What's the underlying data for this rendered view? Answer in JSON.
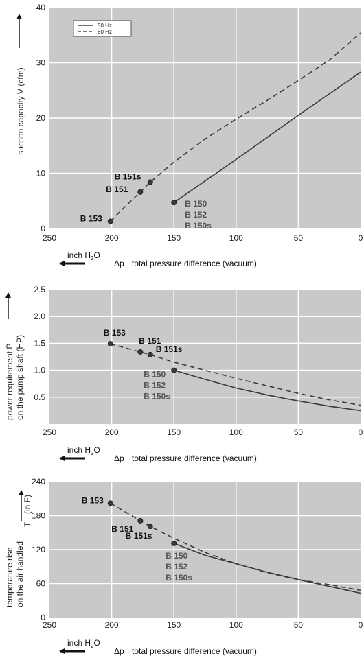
{
  "colors": {
    "plot_bg": "#c8c9cb",
    "grid": "#ffffff",
    "line": "#3a3a3a",
    "gray_label": "#555555"
  },
  "chart_data": [
    {
      "type": "line",
      "xlim": [
        250,
        0
      ],
      "ylim": [
        0,
        40
      ],
      "xticks": [
        "250",
        "200",
        "150",
        "100",
        "50",
        "0"
      ],
      "yticks": [
        "0",
        "10",
        "20",
        "30",
        "40"
      ],
      "ylabel": "suction capacity V (cfm)",
      "xlabel_unit": "inch H",
      "xlabel_unit_sub": "2",
      "xlabel_unit_end": "O",
      "xlabel_symbol": "Δp",
      "xlabel": "total pressure difference (vacuum)",
      "legend": {
        "position": "top-left",
        "entries": [
          "50 Hz",
          "60 Hz"
        ]
      },
      "series": [
        {
          "name": "50 Hz",
          "style": "solid",
          "points": [
            [
              150,
              4.7
            ],
            [
              100,
              12.5
            ],
            [
              50,
              20.5
            ],
            [
              0,
              28.3
            ]
          ]
        },
        {
          "name": "60 Hz",
          "style": "dashed",
          "points": [
            [
              201,
              1.3
            ],
            [
              190,
              3.8
            ],
            [
              177,
              6.6
            ],
            [
              169,
              8.4
            ],
            [
              150,
              12
            ],
            [
              125,
              16.2
            ],
            [
              100,
              19.8
            ],
            [
              75,
              23.2
            ],
            [
              50,
              26.8
            ],
            [
              25,
              30.5
            ],
            [
              0,
              35.4
            ]
          ]
        }
      ],
      "markers": [
        [
          201,
          1.3
        ],
        [
          177,
          6.6
        ],
        [
          169,
          8.4
        ],
        [
          150,
          4.7
        ]
      ],
      "annotations": [
        {
          "text": "B 151s",
          "x": 169,
          "y": 8.4,
          "style": "dark",
          "dx": -52,
          "dy": -4
        },
        {
          "text": "B 151",
          "x": 177,
          "y": 6.6,
          "style": "dark",
          "dx": -50,
          "dy": 0
        },
        {
          "text": "B 153",
          "x": 201,
          "y": 1.3,
          "style": "dark",
          "dx": -44,
          "dy": 0
        },
        {
          "text": "B 150",
          "x": 150,
          "y": 4.7,
          "style": "gray",
          "dx": 16,
          "dy": 6
        },
        {
          "text": "B 152",
          "x": 150,
          "y": 4.7,
          "style": "gray",
          "dx": 16,
          "dy": 22
        },
        {
          "text": "B 150s",
          "x": 150,
          "y": 4.7,
          "style": "gray",
          "dx": 16,
          "dy": 38
        }
      ]
    },
    {
      "type": "line",
      "xlim": [
        250,
        0
      ],
      "ylim": [
        0,
        2.5
      ],
      "xticks": [
        "250",
        "200",
        "150",
        "100",
        "50",
        "0"
      ],
      "yticks": [
        "0.5",
        "1.0",
        "1.5",
        "2.0",
        "2.5"
      ],
      "ytick_values": [
        0.5,
        1.0,
        1.5,
        2.0,
        2.5
      ],
      "ylabel_line1": "power requirement P",
      "ylabel_line2": "on the pump shaft (HP)",
      "xlabel_unit": "inch H",
      "xlabel_unit_sub": "2",
      "xlabel_unit_end": "O",
      "xlabel_symbol": "Δp",
      "xlabel": "total pressure difference (vacuum)",
      "series": [
        {
          "name": "",
          "style": "solid",
          "points": [
            [
              150,
              1.0
            ],
            [
              125,
              0.83
            ],
            [
              100,
              0.67
            ],
            [
              75,
              0.54
            ],
            [
              50,
              0.43
            ],
            [
              25,
              0.33
            ],
            [
              0,
              0.25
            ]
          ]
        },
        {
          "name": "",
          "style": "dashed",
          "points": [
            [
              201,
              1.49
            ],
            [
              177,
              1.34
            ],
            [
              169,
              1.29
            ],
            [
              150,
              1.15
            ],
            [
              125,
              1.0
            ],
            [
              100,
              0.85
            ],
            [
              75,
              0.71
            ],
            [
              50,
              0.57
            ],
            [
              25,
              0.45
            ],
            [
              0,
              0.35
            ]
          ]
        }
      ],
      "markers": [
        [
          201,
          1.49
        ],
        [
          177,
          1.34
        ],
        [
          169,
          1.29
        ],
        [
          150,
          1.0
        ]
      ],
      "annotations": [
        {
          "text": "B 153",
          "x": 201,
          "y": 1.49,
          "style": "dark",
          "dx": -10,
          "dy": -12
        },
        {
          "text": "B 151",
          "x": 177,
          "y": 1.34,
          "style": "dark",
          "dx": -2,
          "dy": -12
        },
        {
          "text": "B 151s",
          "x": 169,
          "y": 1.29,
          "style": "dark",
          "dx": 8,
          "dy": -4
        },
        {
          "text": "B 150",
          "x": 150,
          "y": 1.0,
          "style": "gray",
          "dx": -44,
          "dy": 10
        },
        {
          "text": "B 152",
          "x": 150,
          "y": 1.0,
          "style": "gray",
          "dx": -44,
          "dy": 26
        },
        {
          "text": "B 150s",
          "x": 150,
          "y": 1.0,
          "style": "gray",
          "dx": -44,
          "dy": 42
        }
      ]
    },
    {
      "type": "line",
      "xlim": [
        250,
        0
      ],
      "ylim": [
        0,
        240
      ],
      "xticks": [
        "250",
        "200",
        "150",
        "100",
        "50",
        "0"
      ],
      "yticks": [
        "0",
        "60",
        "120",
        "180",
        "240"
      ],
      "ylabel_line1": "temperature rise",
      "ylabel_line2": "on the air handled",
      "ylabel_symbol": "T",
      "ylabel_unit": "(in F)",
      "xlabel_unit": "inch H",
      "xlabel_unit_sub": "2",
      "xlabel_unit_end": "O",
      "xlabel_symbol": "Δp",
      "xlabel": "total pressure difference (vacuum)",
      "series": [
        {
          "name": "",
          "style": "solid",
          "points": [
            [
              150,
              131
            ],
            [
              125,
              110
            ],
            [
              100,
              95
            ],
            [
              75,
              80
            ],
            [
              50,
              67
            ],
            [
              25,
              55
            ],
            [
              0,
              43
            ]
          ]
        },
        {
          "name": "",
          "style": "dashed",
          "points": [
            [
              201,
              202
            ],
            [
              177,
              171
            ],
            [
              169,
              161
            ],
            [
              150,
              140
            ],
            [
              125,
              115
            ],
            [
              100,
              95
            ],
            [
              75,
              79
            ],
            [
              50,
              67
            ],
            [
              25,
              58
            ],
            [
              0,
              48
            ]
          ]
        }
      ],
      "markers": [
        [
          201,
          202
        ],
        [
          177,
          171
        ],
        [
          169,
          161
        ],
        [
          150,
          131
        ]
      ],
      "annotations": [
        {
          "text": "B 153",
          "x": 201,
          "y": 202,
          "style": "dark",
          "dx": -42,
          "dy": 0
        },
        {
          "text": "B 151",
          "x": 177,
          "y": 171,
          "style": "dark",
          "dx": -42,
          "dy": 16
        },
        {
          "text": "B 151s",
          "x": 169,
          "y": 161,
          "style": "dark",
          "dx": -36,
          "dy": 18
        },
        {
          "text": "B 150",
          "x": 150,
          "y": 131,
          "style": "gray",
          "dx": -12,
          "dy": 22
        },
        {
          "text": "B 152",
          "x": 150,
          "y": 131,
          "style": "gray",
          "dx": -12,
          "dy": 38
        },
        {
          "text": "B 150s",
          "x": 150,
          "y": 131,
          "style": "gray",
          "dx": -12,
          "dy": 54
        }
      ]
    }
  ]
}
